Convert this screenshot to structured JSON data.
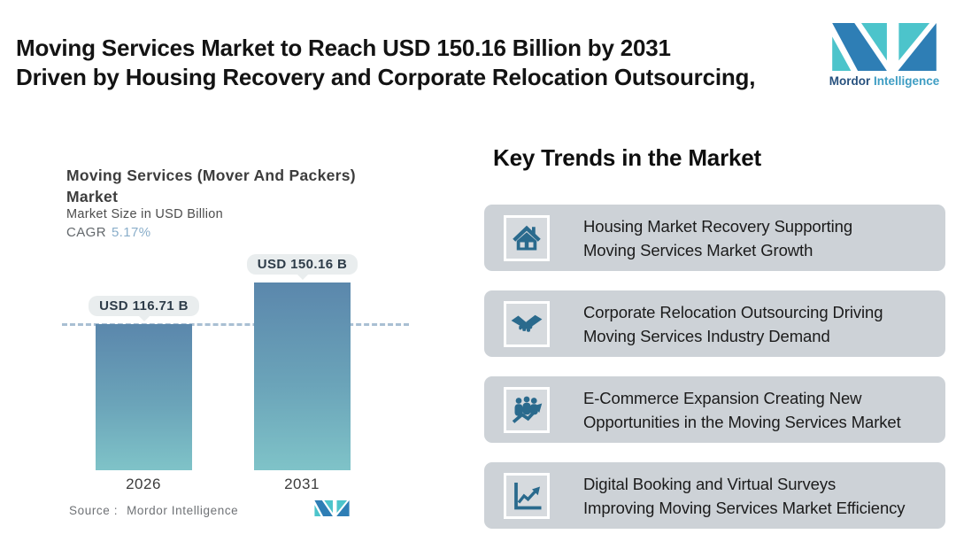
{
  "header": {
    "title_line1": "Moving Services Market to Reach USD 150.16 Billion by 2031",
    "title_line2": "Driven by Housing Recovery and Corporate Relocation Outsourcing,",
    "brand": {
      "name_primary": "Mordor",
      "name_secondary": "Intelligence"
    }
  },
  "chart": {
    "title_line1": "Moving Services (Mover And Packers)",
    "title_line2": "Market",
    "subtitle": "Market Size in USD Billion",
    "cagr_label": "CAGR",
    "cagr_value": "5.17%",
    "source_label": "Source :",
    "source_value": "Mordor Intelligence"
  },
  "chart_data": {
    "type": "bar",
    "title": "Moving Services (Mover And Packers) Market",
    "ylabel": "Market Size in USD Billion",
    "cagr": "5.17%",
    "categories": [
      "2026",
      "2031"
    ],
    "values": [
      116.71,
      150.16
    ],
    "value_labels": [
      "USD 116.71 B",
      "USD 150.16 B"
    ],
    "unit": "USD Billion",
    "ylim": [
      0,
      160
    ],
    "grid": false,
    "reference_line_value": 116.71,
    "reference_line_style": "dashed",
    "source": "Mordor Intelligence"
  },
  "trends": {
    "heading": "Key Trends in the Market",
    "cards": [
      {
        "icon": "house-icon",
        "text_line1": "Housing Market Recovery Supporting",
        "text_line2": "Moving Services Market Growth"
      },
      {
        "icon": "handshake-icon",
        "text_line1": "Corporate Relocation Outsourcing Driving",
        "text_line2": "Moving Services Industry Demand"
      },
      {
        "icon": "people-growth-icon",
        "text_line1": "E-Commerce Expansion Creating New",
        "text_line2": "Opportunities in the Moving Services Market"
      },
      {
        "icon": "chart-growth-icon",
        "text_line1": "Digital Booking and Virtual Surveys",
        "text_line2": "Improving Moving Services Market Efficiency"
      }
    ]
  },
  "colors": {
    "bar_top": "#5b87ac",
    "bar_bottom": "#7fc3c8",
    "reference_line": "#a9bfd3",
    "pill_background": "#e9edee",
    "card_background": "#cdd2d7",
    "icon_blue": "#2a6a8d",
    "logo_teal": "#4cc4cb",
    "logo_blue": "#2e7eb5",
    "cagr_value_color": "#8aaeca"
  }
}
